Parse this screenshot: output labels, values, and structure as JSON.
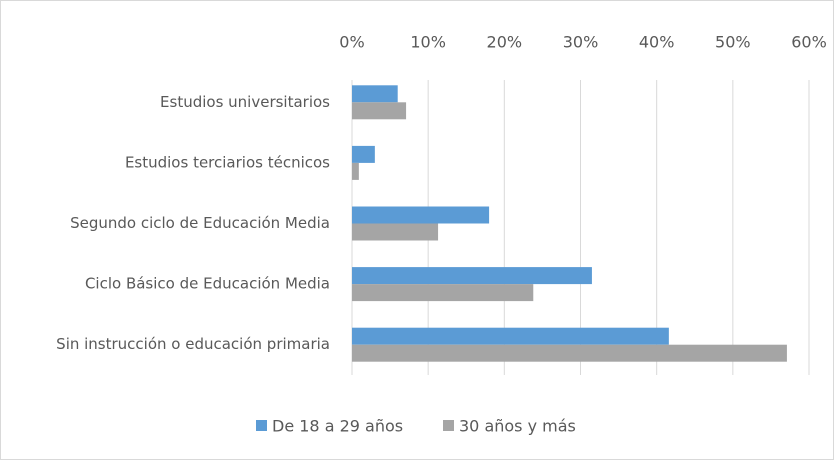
{
  "chart_data": {
    "type": "bar",
    "orientation": "horizontal",
    "categories": [
      "Estudios universitarios",
      "Estudios terciarios técnicos",
      "Segundo ciclo de Educación Media",
      "Ciclo Básico de Educación Media",
      "Sin instrucción o educación primaria"
    ],
    "series": [
      {
        "name": "De 18 a 29 años",
        "color": "#5b9bd5",
        "values": [
          6.0,
          3.0,
          18.0,
          31.5,
          41.6
        ]
      },
      {
        "name": "30 años y más",
        "color": "#a5a5a5",
        "values": [
          7.1,
          0.9,
          11.3,
          23.8,
          57.1
        ]
      }
    ],
    "xlim": [
      0,
      60
    ],
    "xticks": [
      {
        "value": 0,
        "label": "0%"
      },
      {
        "value": 10,
        "label": "10%"
      },
      {
        "value": 20,
        "label": "20%"
      },
      {
        "value": 30,
        "label": "30%"
      },
      {
        "value": 40,
        "label": "40%"
      },
      {
        "value": 50,
        "label": "50%"
      },
      {
        "value": 60,
        "label": "60%"
      }
    ],
    "grid": true,
    "legend": "bottom"
  }
}
